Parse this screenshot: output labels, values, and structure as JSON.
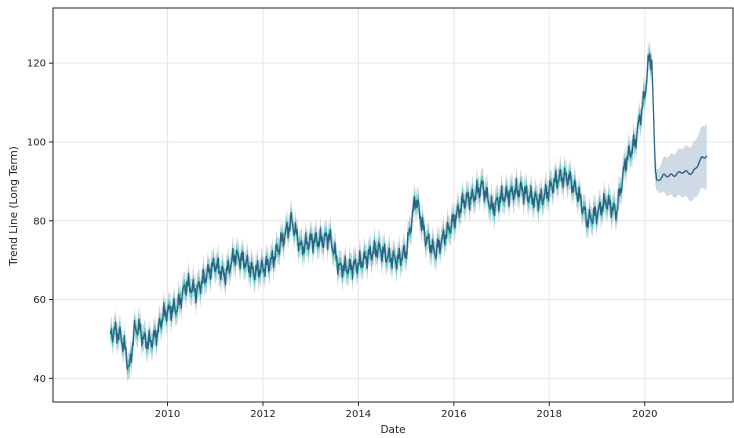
{
  "chart_data": {
    "type": "line",
    "title": "",
    "xlabel": "Date",
    "ylabel": "Trend Line (Long Term)",
    "xlim": [
      2007.6,
      2021.85
    ],
    "ylim": [
      34,
      134
    ],
    "grid": true,
    "legend": "none",
    "x_ticks": [
      2010,
      2012,
      2014,
      2016,
      2018,
      2020
    ],
    "y_ticks": [
      40,
      60,
      80,
      100,
      120
    ],
    "colors": {
      "trend_line": "#2a6185",
      "confidence_band": "#9fb6cb",
      "historical_band": "#3fd3b0",
      "grid": "#e6e6e6",
      "axis": "#222222"
    },
    "series": [
      {
        "role": "historical",
        "x": [
          2008.8,
          2008.9,
          2009.0,
          2009.1,
          2009.2,
          2009.3,
          2009.4,
          2009.5,
          2009.6,
          2009.7,
          2009.8,
          2009.9,
          2010.0,
          2010.2,
          2010.4,
          2010.6,
          2010.8,
          2011.0,
          2011.2,
          2011.4,
          2011.6,
          2011.8,
          2012.0,
          2012.2,
          2012.4,
          2012.6,
          2012.8,
          2013.0,
          2013.2,
          2013.4,
          2013.6,
          2013.8,
          2014.0,
          2014.2,
          2014.4,
          2014.6,
          2014.8,
          2015.0,
          2015.2,
          2015.4,
          2015.6,
          2015.8,
          2016.0,
          2016.2,
          2016.4,
          2016.6,
          2016.8,
          2017.0,
          2017.2,
          2017.4,
          2017.6,
          2017.8,
          2018.0,
          2018.2,
          2018.4,
          2018.6,
          2018.8,
          2019.0,
          2019.2,
          2019.4,
          2019.6,
          2019.8,
          2020.0,
          2020.1,
          2020.15,
          2020.2,
          2020.25
        ],
        "y": [
          51,
          52,
          51,
          48,
          42,
          52,
          53,
          50,
          49,
          50,
          52,
          56,
          57,
          58,
          64,
          62,
          66,
          69,
          66,
          71,
          70,
          67,
          68,
          70,
          75,
          80,
          73,
          75,
          75,
          76,
          68,
          68,
          69,
          71,
          73,
          71,
          70,
          72,
          86,
          76,
          72,
          76,
          80,
          85,
          86,
          89,
          83,
          86,
          87,
          88,
          86,
          85,
          88,
          91,
          91,
          87,
          80,
          82,
          85,
          82,
          95,
          100,
          112,
          122,
          120,
          100,
          90
        ]
      },
      {
        "role": "forecast",
        "x": [
          2020.25,
          2020.4,
          2020.6,
          2020.8,
          2021.0,
          2021.2,
          2021.3
        ],
        "y": [
          90,
          91.5,
          91.5,
          92.5,
          92,
          96,
          96.5
        ]
      }
    ]
  }
}
